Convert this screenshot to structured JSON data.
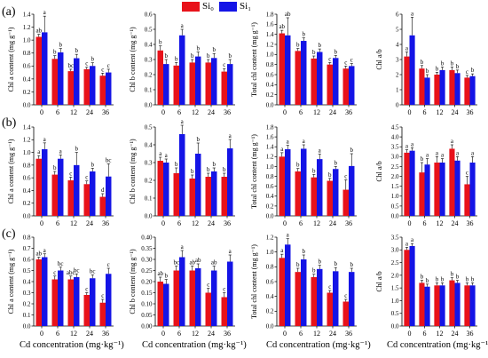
{
  "legend": [
    {
      "name": "Si0",
      "display": "Si₀",
      "color": "#e8121a"
    },
    {
      "name": "Si1",
      "display": "Si₁",
      "color": "#1414e6"
    }
  ],
  "row_labels": [
    "(a)",
    "(b)",
    "(c)"
  ],
  "x_caption": "Cd concentration (mg·kg⁻¹)",
  "chart_data": [
    {
      "type": "bar",
      "row": "(a)",
      "ylabel": "Chl a content (mg g⁻¹)",
      "categories": [
        "0",
        "6",
        "12",
        "24",
        "36"
      ],
      "ylim": [
        0,
        1.4
      ],
      "yticks": [
        0,
        0.2,
        0.4,
        0.6,
        0.8,
        1.0,
        1.2,
        1.4
      ],
      "ytick_labels": [
        "0.0",
        "0.2",
        "0.4",
        "0.6",
        "0.8",
        "1.0",
        "1.2",
        "1.4"
      ],
      "series": [
        {
          "name": "Si0",
          "values": [
            1.05,
            0.71,
            0.52,
            0.55,
            0.45
          ],
          "err": [
            0.04,
            0.05,
            0.03,
            0.03,
            0.04
          ],
          "labels": [
            "ab",
            "b",
            "bc",
            "c",
            "c"
          ]
        },
        {
          "name": "Si1",
          "values": [
            1.12,
            0.81,
            0.72,
            0.6,
            0.5
          ],
          "err": [
            0.25,
            0.06,
            0.06,
            0.05,
            0.05
          ],
          "labels": [
            "a",
            "b",
            "b",
            "b",
            "c"
          ]
        }
      ]
    },
    {
      "type": "bar",
      "row": "(a)",
      "ylabel": "Chl b content (mg g⁻¹)",
      "categories": [
        "0",
        "6",
        "12",
        "24",
        "36"
      ],
      "ylim": [
        0,
        0.6
      ],
      "yticks": [
        0,
        0.1,
        0.2,
        0.3,
        0.4,
        0.5,
        0.6
      ],
      "ytick_labels": [
        "0.0",
        "0.1",
        "0.2",
        "0.3",
        "0.4",
        "0.5",
        "0.6"
      ],
      "series": [
        {
          "name": "Si0",
          "values": [
            0.36,
            0.26,
            0.28,
            0.28,
            0.22
          ],
          "err": [
            0.03,
            0.02,
            0.02,
            0.02,
            0.02
          ],
          "labels": [
            "b",
            "b",
            "b",
            "b",
            "c"
          ]
        },
        {
          "name": "Si1",
          "values": [
            0.27,
            0.46,
            0.32,
            0.31,
            0.27
          ],
          "err": [
            0.03,
            0.04,
            0.03,
            0.03,
            0.03
          ],
          "labels": [
            "b",
            "a",
            "b",
            "b",
            "b"
          ]
        }
      ]
    },
    {
      "type": "bar",
      "row": "(a)",
      "ylabel": "Total chl content (mg g⁻¹)",
      "categories": [
        "0",
        "6",
        "12",
        "24",
        "36"
      ],
      "ylim": [
        0,
        1.8
      ],
      "yticks": [
        0,
        0.2,
        0.4,
        0.6,
        0.8,
        1.0,
        1.2,
        1.4,
        1.6,
        1.8
      ],
      "ytick_labels": [
        "0.0",
        "0.2",
        "0.4",
        "0.6",
        "0.8",
        "1.0",
        "1.2",
        "1.4",
        "1.6",
        "1.8"
      ],
      "series": [
        {
          "name": "Si0",
          "values": [
            1.42,
            1.07,
            0.92,
            0.8,
            0.72
          ],
          "err": [
            0.06,
            0.05,
            0.05,
            0.04,
            0.05
          ],
          "labels": [
            "ab",
            "b",
            "b",
            "c",
            "c"
          ]
        },
        {
          "name": "Si1",
          "values": [
            1.38,
            1.27,
            1.05,
            0.93,
            0.77
          ],
          "err": [
            0.35,
            0.06,
            0.06,
            0.05,
            0.05
          ],
          "labels": [
            "ab",
            "b",
            "b",
            "b",
            "c"
          ]
        }
      ]
    },
    {
      "type": "bar",
      "row": "(a)",
      "ylabel": "Chl a/b",
      "categories": [
        "0",
        "6",
        "12",
        "24",
        "36"
      ],
      "ylim": [
        0,
        6
      ],
      "yticks": [
        0,
        1,
        2,
        3,
        4,
        5,
        6
      ],
      "ytick_labels": [
        "0",
        "1",
        "2",
        "3",
        "4",
        "5",
        "6"
      ],
      "series": [
        {
          "name": "Si0",
          "values": [
            3.2,
            2.4,
            2.0,
            2.3,
            1.8
          ],
          "err": [
            0.3,
            0.2,
            0.15,
            0.2,
            0.15
          ],
          "labels": [
            "a",
            "b",
            "b",
            "b",
            "c"
          ]
        },
        {
          "name": "Si1",
          "values": [
            4.6,
            1.8,
            2.3,
            2.1,
            1.9
          ],
          "err": [
            1.2,
            0.2,
            0.2,
            0.2,
            0.15
          ],
          "labels": [
            "a",
            "b",
            "b",
            "b",
            "b"
          ]
        }
      ]
    },
    {
      "type": "bar",
      "row": "(b)",
      "ylabel": "Chl a content (mg g⁻¹)",
      "categories": [
        "0",
        "6",
        "12",
        "24",
        "36"
      ],
      "ylim": [
        0,
        1.4
      ],
      "yticks": [
        0,
        0.2,
        0.4,
        0.6,
        0.8,
        1.0,
        1.2,
        1.4
      ],
      "ytick_labels": [
        "0.0",
        "0.2",
        "0.4",
        "0.6",
        "0.8",
        "1.0",
        "1.2",
        "1.4"
      ],
      "series": [
        {
          "name": "Si0",
          "values": [
            0.9,
            0.65,
            0.56,
            0.5,
            0.3
          ],
          "err": [
            0.05,
            0.05,
            0.05,
            0.05,
            0.05
          ],
          "labels": [
            "a",
            "b",
            "c",
            "c",
            "d"
          ]
        },
        {
          "name": "Si1",
          "values": [
            1.05,
            0.9,
            0.8,
            0.7,
            0.62
          ],
          "err": [
            0.1,
            0.06,
            0.2,
            0.05,
            0.2
          ],
          "labels": [
            "a",
            "a",
            "b",
            "b",
            "bc"
          ]
        }
      ]
    },
    {
      "type": "bar",
      "row": "(b)",
      "ylabel": "Chl b content (mg g⁻¹)",
      "categories": [
        "0",
        "6",
        "12",
        "24",
        "36"
      ],
      "ylim": [
        0,
        0.5
      ],
      "yticks": [
        0,
        0.1,
        0.2,
        0.3,
        0.4,
        0.5
      ],
      "ytick_labels": [
        "0.0",
        "0.1",
        "0.2",
        "0.3",
        "0.4",
        "0.5"
      ],
      "series": [
        {
          "name": "Si0",
          "values": [
            0.31,
            0.24,
            0.21,
            0.22,
            0.22
          ],
          "err": [
            0.02,
            0.03,
            0.02,
            0.02,
            0.02
          ],
          "labels": [
            "a",
            "b",
            "b",
            "b",
            "b"
          ]
        },
        {
          "name": "Si1",
          "values": [
            0.3,
            0.46,
            0.35,
            0.25,
            0.38
          ],
          "err": [
            0.02,
            0.05,
            0.06,
            0.02,
            0.05
          ],
          "labels": [
            "a",
            "a",
            "b",
            "b",
            "a"
          ]
        }
      ]
    },
    {
      "type": "bar",
      "row": "(b)",
      "ylabel": "Total chl content (mg g⁻¹)",
      "categories": [
        "0",
        "6",
        "12",
        "24",
        "36"
      ],
      "ylim": [
        0,
        1.8
      ],
      "yticks": [
        0,
        0.2,
        0.4,
        0.6,
        0.8,
        1.0,
        1.2,
        1.4,
        1.6,
        1.8
      ],
      "ytick_labels": [
        "0.0",
        "0.2",
        "0.4",
        "0.6",
        "0.8",
        "1.0",
        "1.2",
        "1.4",
        "1.6",
        "1.8"
      ],
      "series": [
        {
          "name": "Si0",
          "values": [
            1.2,
            0.9,
            0.78,
            0.71,
            0.53
          ],
          "err": [
            0.08,
            0.06,
            0.06,
            0.05,
            0.2
          ],
          "labels": [
            "a",
            "b",
            "b",
            "b",
            "c"
          ]
        },
        {
          "name": "Si1",
          "values": [
            1.35,
            1.36,
            1.15,
            0.95,
            1.01
          ],
          "err": [
            0.08,
            0.08,
            0.1,
            0.05,
            0.25
          ],
          "labels": [
            "a",
            "a",
            "a",
            "b",
            "b"
          ]
        }
      ]
    },
    {
      "type": "bar",
      "row": "(b)",
      "ylabel": "Chl a/b",
      "categories": [
        "0",
        "6",
        "12",
        "24",
        "36"
      ],
      "ylim": [
        0,
        4.5
      ],
      "yticks": [
        0,
        0.5,
        1.0,
        1.5,
        2.0,
        2.5,
        3.0,
        3.5,
        4.0,
        4.5
      ],
      "ytick_labels": [
        "0.0",
        "0.5",
        "1.0",
        "1.5",
        "2.0",
        "2.5",
        "3.0",
        "3.5",
        "4.0",
        "4.5"
      ],
      "series": [
        {
          "name": "Si0",
          "values": [
            3.2,
            2.2,
            2.7,
            3.4,
            1.6
          ],
          "err": [
            0.15,
            0.5,
            0.3,
            0.2,
            0.4
          ],
          "labels": [
            "a",
            "b",
            "a",
            "a",
            "c"
          ]
        },
        {
          "name": "Si1",
          "values": [
            3.3,
            2.6,
            2.7,
            2.8,
            2.7
          ],
          "err": [
            0.15,
            0.3,
            0.2,
            0.2,
            0.3
          ],
          "labels": [
            "a",
            "a",
            "a",
            "a",
            "a"
          ]
        }
      ]
    },
    {
      "type": "bar",
      "row": "(c)",
      "ylabel": "Chl a content (mg g⁻¹)",
      "categories": [
        "0",
        "6",
        "12",
        "24",
        "36"
      ],
      "ylim": [
        0,
        0.8
      ],
      "yticks": [
        0,
        0.1,
        0.2,
        0.3,
        0.4,
        0.5,
        0.6,
        0.7,
        0.8
      ],
      "ytick_labels": [
        "0.0",
        "0.1",
        "0.2",
        "0.3",
        "0.4",
        "0.5",
        "0.6",
        "0.7",
        "0.8"
      ],
      "series": [
        {
          "name": "Si0",
          "values": [
            0.6,
            0.42,
            0.42,
            0.28,
            0.21
          ],
          "err": [
            0.02,
            0.03,
            0.03,
            0.02,
            0.03
          ],
          "labels": [
            "ab",
            "c",
            "abc",
            "c",
            "c"
          ]
        },
        {
          "name": "Si1",
          "values": [
            0.62,
            0.5,
            0.44,
            0.43,
            0.47
          ],
          "err": [
            0.03,
            0.03,
            0.03,
            0.03,
            0.05
          ],
          "labels": [
            "a",
            "bc",
            "bc",
            "bc",
            "c"
          ]
        }
      ]
    },
    {
      "type": "bar",
      "row": "(c)",
      "ylabel": "Chl b content (mg g⁻¹)",
      "categories": [
        "0",
        "6",
        "12",
        "24",
        "36"
      ],
      "ylim": [
        0,
        0.4
      ],
      "yticks": [
        0,
        0.05,
        0.1,
        0.15,
        0.2,
        0.25,
        0.3,
        0.35,
        0.4
      ],
      "ytick_labels": [
        "0.00",
        "0.05",
        "0.10",
        "0.15",
        "0.20",
        "0.25",
        "0.30",
        "0.35",
        "0.40"
      ],
      "series": [
        {
          "name": "Si0",
          "values": [
            0.2,
            0.25,
            0.25,
            0.15,
            0.13
          ],
          "err": [
            0.02,
            0.02,
            0.02,
            0.02,
            0.02
          ],
          "labels": [
            "ab",
            "bc",
            "ab",
            "c",
            "c"
          ]
        },
        {
          "name": "Si1",
          "values": [
            0.19,
            0.31,
            0.26,
            0.25,
            0.29
          ],
          "err": [
            0.02,
            0.03,
            0.02,
            0.02,
            0.03
          ],
          "labels": [
            "b",
            "a",
            "ab",
            "ab",
            "a"
          ]
        }
      ]
    },
    {
      "type": "bar",
      "row": "(c)",
      "ylabel": "Total chl content (mg g⁻¹)",
      "categories": [
        "0",
        "6",
        "12",
        "24",
        "36"
      ],
      "ylim": [
        0,
        1.2
      ],
      "yticks": [
        0,
        0.2,
        0.4,
        0.6,
        0.8,
        1.0,
        1.2
      ],
      "ytick_labels": [
        "0.0",
        "0.2",
        "0.4",
        "0.6",
        "0.8",
        "1.0",
        "1.2"
      ],
      "series": [
        {
          "name": "Si0",
          "values": [
            0.92,
            0.73,
            0.66,
            0.45,
            0.33
          ],
          "err": [
            0.05,
            0.05,
            0.04,
            0.03,
            0.03
          ],
          "labels": [
            "a",
            "b",
            "b",
            "c",
            "c"
          ]
        },
        {
          "name": "Si1",
          "values": [
            1.1,
            0.9,
            0.77,
            0.74,
            0.73
          ],
          "err": [
            0.08,
            0.06,
            0.05,
            0.05,
            0.05
          ],
          "labels": [
            "a",
            "b",
            "b",
            "b",
            "b"
          ]
        }
      ]
    },
    {
      "type": "bar",
      "row": "(c)",
      "ylabel": "Chl a/b",
      "categories": [
        "0",
        "6",
        "12",
        "24",
        "36"
      ],
      "ylim": [
        0,
        3.5
      ],
      "yticks": [
        0,
        0.5,
        1.0,
        1.5,
        2.0,
        2.5,
        3.0,
        3.5
      ],
      "ytick_labels": [
        "0.0",
        "0.5",
        "1.0",
        "1.5",
        "2.0",
        "2.5",
        "3.0",
        "3.5"
      ],
      "series": [
        {
          "name": "Si0",
          "values": [
            3.0,
            1.7,
            1.6,
            1.8,
            1.6
          ],
          "err": [
            0.1,
            0.1,
            0.1,
            0.1,
            0.1
          ],
          "labels": [
            "a",
            "b",
            "b",
            "b",
            "b"
          ]
        },
        {
          "name": "Si1",
          "values": [
            3.15,
            1.55,
            1.6,
            1.7,
            1.6
          ],
          "err": [
            0.1,
            0.1,
            0.1,
            0.1,
            0.1
          ],
          "labels": [
            "a",
            "b",
            "b",
            "b",
            "b"
          ]
        }
      ]
    }
  ]
}
